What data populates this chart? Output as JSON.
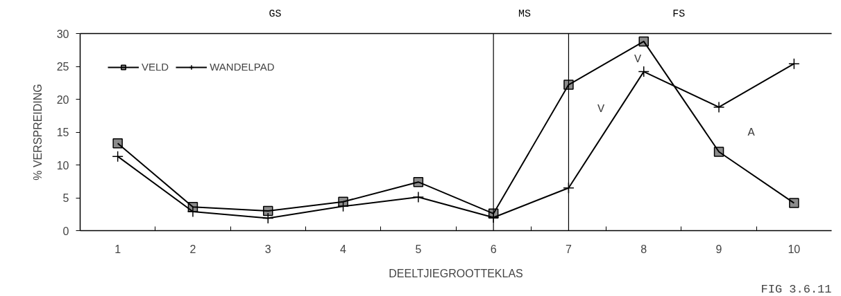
{
  "chart_data": {
    "type": "line",
    "xlabel": "DEELTJIEGROOTTEKLAS",
    "ylabel": "% VERSPREIDING",
    "x": [
      1,
      2,
      3,
      4,
      5,
      6,
      7,
      8,
      9,
      10
    ],
    "xlim": [
      0.5,
      10.5
    ],
    "xticks": [
      1,
      {
        "value": 1.5,
        "label": null
      },
      2,
      {
        "value": 2.5,
        "label": null
      },
      3,
      {
        "value": 3.5,
        "label": null
      },
      4,
      {
        "value": 4.5,
        "label": null
      },
      5,
      {
        "value": 5.5,
        "label": null
      },
      6,
      {
        "value": 6.5,
        "label": null
      },
      7,
      {
        "value": 7.5,
        "label": null
      },
      8,
      {
        "value": 8.5,
        "label": null
      },
      9,
      {
        "value": 9.5,
        "label": null
      },
      10
    ],
    "ylim": [
      0,
      30
    ],
    "yticks": [
      0,
      5,
      10,
      15,
      20,
      25,
      30
    ],
    "series": [
      {
        "name": "VELD",
        "color": "#000000",
        "marker": "square",
        "values": [
          13.3,
          3.6,
          3.0,
          4.4,
          7.4,
          2.6,
          22.2,
          28.8,
          12.0,
          4.2
        ]
      },
      {
        "name": "WANDELPAD",
        "color": "#000000",
        "marker": "cross",
        "values": [
          11.3,
          2.9,
          1.9,
          3.7,
          5.1,
          2.0,
          6.5,
          24.2,
          18.8,
          25.4
        ]
      }
    ],
    "ref_lines": [
      {
        "axis": "x",
        "value": 6
      },
      {
        "axis": "x",
        "value": 7
      }
    ],
    "annotations": [
      "GS",
      "MS",
      "FS",
      "V",
      "V",
      "A",
      "FIG 3.6.11"
    ],
    "legend": "top left",
    "grid": false,
    "line_style": "solid"
  }
}
